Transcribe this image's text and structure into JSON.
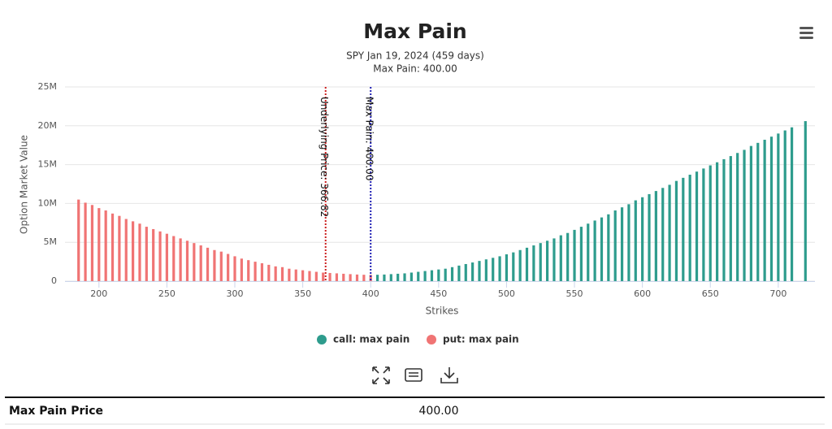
{
  "chart_data": {
    "type": "bar",
    "title": "Max Pain",
    "subtitle": [
      "SPY Jan 19, 2024 (459 days)",
      "Max Pain: 400.00"
    ],
    "x_label": "Strikes",
    "y_label": "Option Market Value",
    "xlim": [
      175,
      727
    ],
    "xticks": [
      200,
      250,
      300,
      350,
      400,
      450,
      500,
      550,
      600,
      650,
      700
    ],
    "ylim": [
      0,
      25
    ],
    "yticks": [
      0,
      {
        "value": 5,
        "label": "5M"
      },
      {
        "value": 10,
        "label": "10M"
      },
      {
        "value": 15,
        "label": "15M"
      },
      {
        "value": 20,
        "label": "20M"
      },
      {
        "value": 25,
        "label": "25M"
      }
    ],
    "grid": true,
    "plot_lines": [
      {
        "value": 366.82,
        "label": "Underlying Price: 366.82",
        "color": "#cc1f1f"
      },
      {
        "value": 400,
        "label": "Max Pain: 400.00",
        "color": "#1f1fb4"
      }
    ],
    "series": [
      {
        "name": "call: max pain",
        "color": "#2e9c8d",
        "x": [
          405,
          410,
          415,
          420,
          425,
          430,
          435,
          440,
          445,
          450,
          455,
          460,
          465,
          470,
          475,
          480,
          485,
          490,
          495,
          500,
          505,
          510,
          515,
          520,
          525,
          530,
          535,
          540,
          545,
          550,
          555,
          560,
          565,
          570,
          575,
          580,
          585,
          590,
          595,
          600,
          605,
          610,
          615,
          620,
          625,
          630,
          635,
          640,
          645,
          650,
          655,
          660,
          665,
          670,
          675,
          680,
          685,
          690,
          695,
          700,
          705,
          710,
          720
        ],
        "values": [
          0.82,
          0.85,
          0.9,
          0.95,
          1.0,
          1.1,
          1.2,
          1.3,
          1.4,
          1.5,
          1.6,
          1.8,
          2.0,
          2.2,
          2.4,
          2.6,
          2.8,
          3.0,
          3.2,
          3.45,
          3.7,
          4.0,
          4.3,
          4.6,
          4.9,
          5.2,
          5.5,
          5.9,
          6.2,
          6.6,
          7.0,
          7.4,
          7.8,
          8.2,
          8.6,
          9.1,
          9.5,
          9.9,
          10.4,
          10.8,
          11.2,
          11.6,
          12.0,
          12.4,
          12.9,
          13.3,
          13.7,
          14.1,
          14.5,
          14.9,
          15.3,
          15.7,
          16.1,
          16.5,
          16.9,
          17.4,
          17.8,
          18.2,
          18.6,
          19.0,
          19.4,
          19.8,
          20.6
        ]
      },
      {
        "name": "put: max pain",
        "color": "#f07474",
        "x": [
          185,
          190,
          195,
          200,
          205,
          210,
          215,
          220,
          225,
          230,
          235,
          240,
          245,
          250,
          255,
          260,
          265,
          270,
          275,
          280,
          285,
          290,
          295,
          300,
          305,
          310,
          315,
          320,
          325,
          330,
          335,
          340,
          345,
          350,
          355,
          360,
          365,
          370,
          375,
          380,
          385,
          390,
          395,
          400
        ],
        "values": [
          10.5,
          10.1,
          9.8,
          9.4,
          9.1,
          8.7,
          8.4,
          8.0,
          7.7,
          7.4,
          7.0,
          6.7,
          6.4,
          6.1,
          5.8,
          5.5,
          5.2,
          4.9,
          4.6,
          4.3,
          4.0,
          3.8,
          3.5,
          3.2,
          2.9,
          2.7,
          2.5,
          2.3,
          2.1,
          1.9,
          1.8,
          1.6,
          1.5,
          1.4,
          1.3,
          1.2,
          1.1,
          1.05,
          1.0,
          0.95,
          0.9,
          0.85,
          0.82,
          0.8
        ]
      }
    ]
  },
  "table": {
    "rows": [
      [
        "Max Pain Price",
        "400.00"
      ]
    ]
  }
}
